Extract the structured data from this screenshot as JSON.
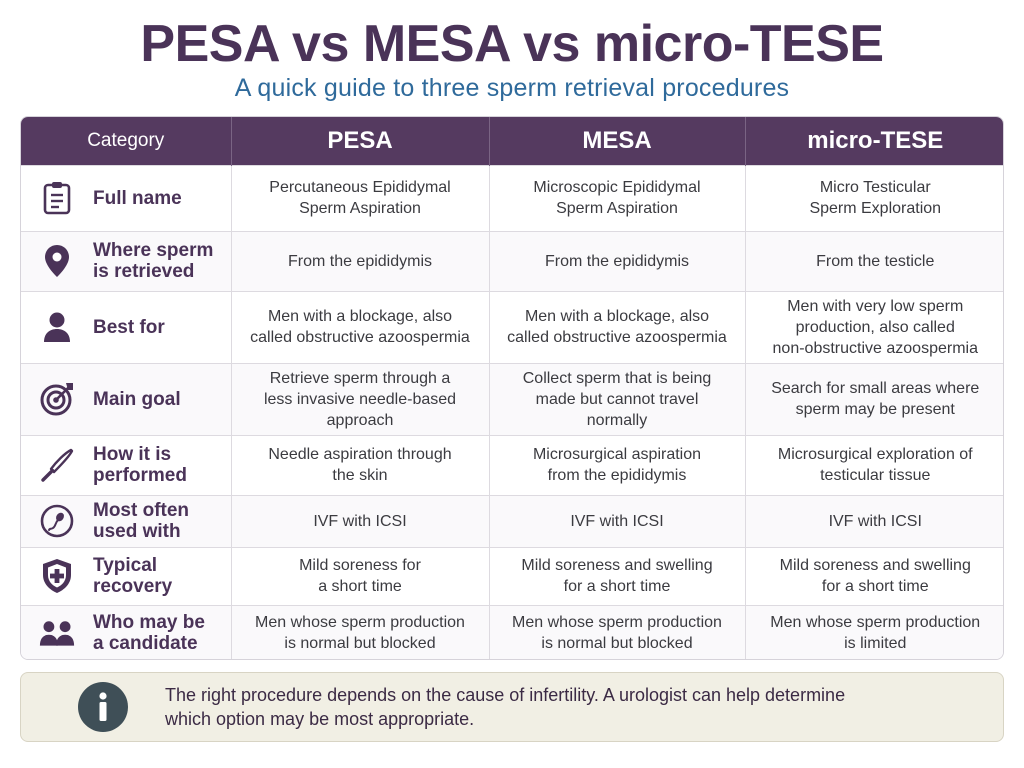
{
  "header": {
    "title": "PESA vs MESA vs micro-TESE",
    "subtitle": "A quick guide to three sperm retrieval procedures"
  },
  "table": {
    "columns": [
      "Category",
      "PESA",
      "MESA",
      "micro-TESE"
    ],
    "rows": [
      {
        "icon": "clipboard-icon",
        "label": "Full name",
        "cells": [
          "Percutaneous Epididymal\nSperm Aspiration",
          "Microscopic Epididymal\nSperm Aspiration",
          "Micro Testicular\nSperm Exploration"
        ]
      },
      {
        "icon": "location-pin-icon",
        "label": "Where sperm\nis retrieved",
        "cells": [
          "From the epididymis",
          "From the epididymis",
          "From the testicle"
        ]
      },
      {
        "icon": "person-icon",
        "label": "Best for",
        "cells": [
          "Men with a blockage, also\ncalled obstructive azoospermia",
          "Men with a blockage, also\ncalled obstructive azoospermia",
          "Men with very low sperm\nproduction, also called\nnon-obstructive azoospermia"
        ]
      },
      {
        "icon": "target-icon",
        "label": "Main goal",
        "cells": [
          "Retrieve sperm through a\nless invasive needle-based\napproach",
          "Collect sperm that is being\nmade but cannot travel\nnormally",
          "Search for small areas where\nsperm may be present"
        ]
      },
      {
        "icon": "scalpel-icon",
        "label": "How it is\nperformed",
        "cells": [
          "Needle aspiration through\nthe skin",
          "Microsurgical aspiration\nfrom the epididymis",
          "Microsurgical exploration of\ntesticular tissue"
        ]
      },
      {
        "icon": "sperm-cell-icon",
        "label": "Most often\nused with",
        "cells": [
          "IVF with ICSI",
          "IVF with ICSI",
          "IVF with ICSI"
        ]
      },
      {
        "icon": "shield-plus-icon",
        "label": "Typical\nrecovery",
        "cells": [
          "Mild soreness for\na short time",
          "Mild soreness and swelling\nfor a short time",
          "Mild soreness and swelling\nfor a short time"
        ]
      },
      {
        "icon": "people-icon",
        "label": "Who may be\na candidate",
        "cells": [
          "Men whose sperm production\nis normal but blocked",
          "Men whose sperm production\nis normal but blocked",
          "Men whose sperm production\nis limited"
        ]
      }
    ]
  },
  "note": {
    "icon": "info-icon",
    "text": "The right procedure depends on the cause of infertility. A urologist can help determine\nwhich option may be most appropriate."
  },
  "colors": {
    "header_bg": "#553a60",
    "title": "#4a3358",
    "subtitle": "#2f6a9b",
    "note_bg": "#f1efe4",
    "info_circle": "#3f4f57"
  }
}
